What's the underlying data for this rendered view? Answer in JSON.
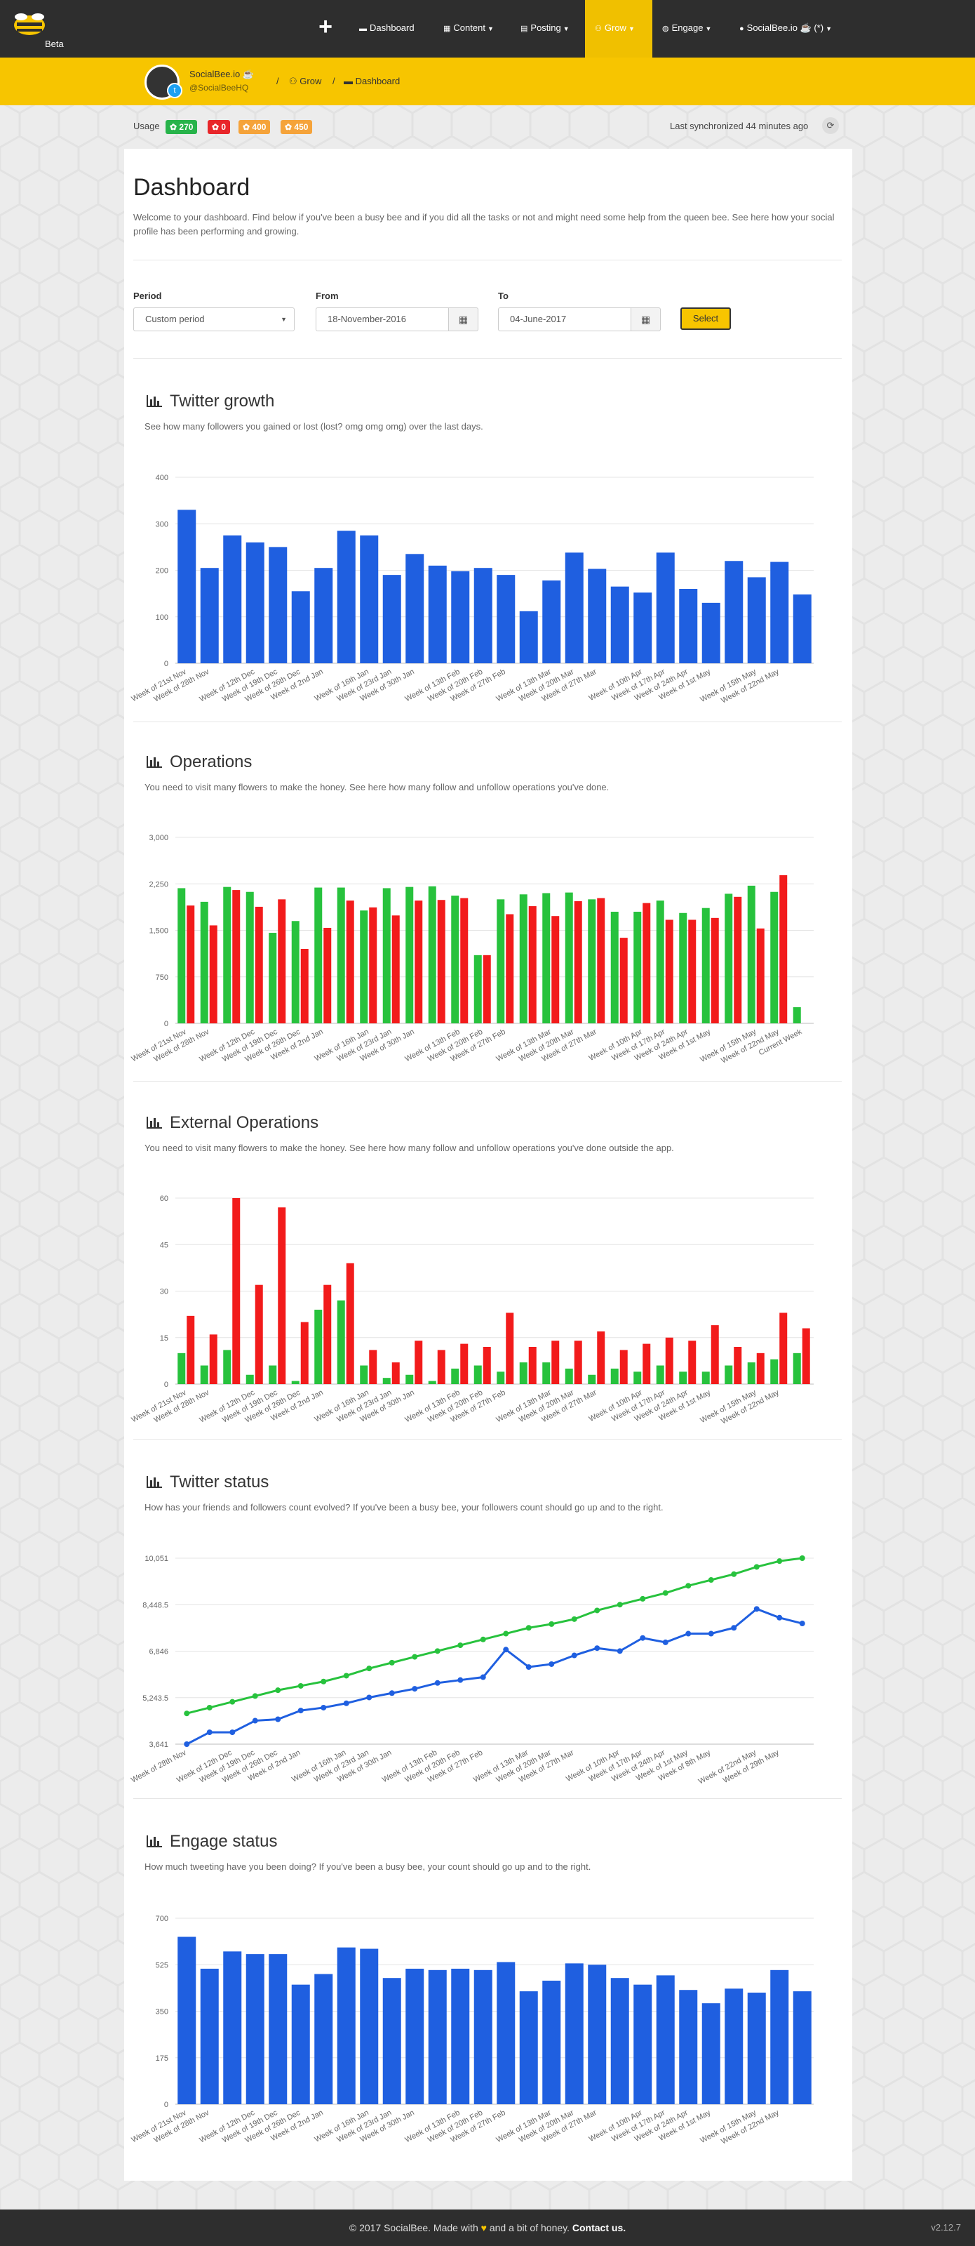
{
  "nav": {
    "logo_label": "Beta",
    "items": [
      {
        "icon": "▬",
        "label": "Dashboard"
      },
      {
        "icon": "▦",
        "label": "Content"
      },
      {
        "icon": "▤",
        "label": "Posting"
      },
      {
        "icon": "⚇",
        "label": "Grow"
      },
      {
        "icon": "◍",
        "label": "Engage"
      },
      {
        "icon": "●",
        "label": "SocialBee.io ☕ (*)"
      }
    ]
  },
  "account": {
    "name": "SocialBee.io ☕",
    "handle": "@SocialBeeHQ"
  },
  "breadcrumb": [
    {
      "icon": "⚇",
      "label": "Grow"
    },
    {
      "icon": "▬",
      "label": "Dashboard"
    }
  ],
  "usage": {
    "label": "Usage",
    "badges": [
      {
        "label": "✿ 270",
        "color": "#27b34a"
      },
      {
        "label": "✿ 0",
        "color": "#e8262a"
      },
      {
        "label": "✿ 400",
        "color": "#f5a33a"
      },
      {
        "label": "✿ 450",
        "color": "#f5a33a"
      }
    ]
  },
  "sync": "Last synchronized 44 minutes ago",
  "page": {
    "title": "Dashboard",
    "description": "Welcome to your dashboard. Find below if you've been a busy bee and if you did all the tasks or not and might need some help from the queen bee. See here how your social profile has been performing and growing."
  },
  "filters": {
    "period_label": "Period",
    "period_value": "Custom period",
    "from_label": "From",
    "from_value": "18-November-2016",
    "to_label": "To",
    "to_value": "04-June-2017",
    "select_label": "Select"
  },
  "charts": [
    {
      "title": "Twitter growth",
      "description": "See how many followers you gained or lost (lost? omg omg omg) over the last days."
    },
    {
      "title": "Operations",
      "description": "You need to visit many flowers to make the honey. See here how many follow and unfollow operations you've done."
    },
    {
      "title": "External Operations",
      "description": "You need to visit many flowers to make the honey. See here how many follow and unfollow operations you've done outside the app."
    },
    {
      "title": "Twitter status",
      "description": "How has your friends and followers count evolved? If you've been a busy bee, your followers count should go up and to the right."
    },
    {
      "title": "Engage status",
      "description": "How much tweeting have you been doing? If you've been a busy bee, your count should go up and to the right."
    }
  ],
  "chart_data": [
    {
      "type": "bar",
      "categories": [
        "Week of 21st Nov",
        "Week of 28th Nov",
        "",
        "Week of 12th Dec",
        "Week of 19th Dec",
        "Week of 26th Dec",
        "Week of 2nd Jan",
        "",
        "Week of 16th Jan",
        "Week of 23rd Jan",
        "Week of 30th Jan",
        "",
        "Week of 13th Feb",
        "Week of 20th Feb",
        "Week of 27th Feb",
        "",
        "Week of 13th Mar",
        "Week of 20th Mar",
        "Week of 27th Mar",
        "",
        "Week of 10th Apr",
        "Week of 17th Apr",
        "Week of 24th Apr",
        "Week of 1st May",
        "",
        "Week of 15th May",
        "Week of 22nd May",
        ""
      ],
      "yticks": [
        "0",
        "100",
        "200",
        "300",
        "400"
      ],
      "ylim": [
        0,
        400
      ],
      "series": [
        {
          "color": "#1f5fe0",
          "values": [
            330,
            205,
            275,
            260,
            250,
            155,
            205,
            285,
            275,
            190,
            235,
            210,
            198,
            205,
            190,
            112,
            178,
            238,
            203,
            165,
            152,
            238,
            160,
            130,
            220,
            185,
            218,
            148
          ]
        }
      ]
    },
    {
      "type": "bar",
      "categories": [
        "Week of 21st Nov",
        "Week of 28th Nov",
        "",
        "Week of 12th Dec",
        "Week of 19th Dec",
        "Week of 26th Dec",
        "Week of 2nd Jan",
        "",
        "Week of 16th Jan",
        "Week of 23rd Jan",
        "Week of 30th Jan",
        "",
        "Week of 13th Feb",
        "Week of 20th Feb",
        "Week of 27th Feb",
        "",
        "Week of 13th Mar",
        "Week of 20th Mar",
        "Week of 27th Mar",
        "",
        "Week of 10th Apr",
        "Week of 17th Apr",
        "Week of 24th Apr",
        "Week of 1st May",
        "",
        "Week of 15th May",
        "Week of 22nd May",
        "Current Week"
      ],
      "yticks": [
        "0",
        "750",
        "1,500",
        "2,250",
        "3,000"
      ],
      "ylim": [
        0,
        3000
      ],
      "series": [
        {
          "color": "#27c23d",
          "values": [
            2180,
            1960,
            2200,
            2120,
            1460,
            1650,
            2190,
            2190,
            1820,
            2180,
            2200,
            2210,
            2060,
            1100,
            2000,
            2080,
            2100,
            2110,
            2000,
            1800,
            1800,
            1980,
            1780,
            1860,
            2090,
            2220,
            2120,
            260
          ]
        },
        {
          "color": "#f21b1b",
          "values": [
            1900,
            1580,
            2150,
            1880,
            2000,
            1200,
            1540,
            1980,
            1870,
            1740,
            1980,
            1990,
            2020,
            1100,
            1760,
            1890,
            1730,
            1970,
            2020,
            1380,
            1940,
            1670,
            1670,
            1700,
            2040,
            1530,
            2390,
            0
          ]
        }
      ]
    },
    {
      "type": "bar",
      "categories": [
        "Week of 21st Nov",
        "Week of 28th Nov",
        "",
        "Week of 12th Dec",
        "Week of 19th Dec",
        "Week of 26th Dec",
        "Week of 2nd Jan",
        "",
        "Week of 16th Jan",
        "Week of 23rd Jan",
        "Week of 30th Jan",
        "",
        "Week of 13th Feb",
        "Week of 20th Feb",
        "Week of 27th Feb",
        "",
        "Week of 13th Mar",
        "Week of 20th Mar",
        "Week of 27th Mar",
        "",
        "Week of 10th Apr",
        "Week of 17th Apr",
        "Week of 24th Apr",
        "Week of 1st May",
        "",
        "Week of 15th May",
        "Week of 22nd May",
        ""
      ],
      "yticks": [
        "0",
        "15",
        "30",
        "45",
        "60"
      ],
      "ylim": [
        0,
        60
      ],
      "series": [
        {
          "color": "#27c23d",
          "values": [
            10,
            6,
            11,
            3,
            6,
            1,
            24,
            27,
            6,
            2,
            3,
            1,
            5,
            6,
            4,
            7,
            7,
            5,
            3,
            5,
            4,
            6,
            4,
            4,
            6,
            7,
            8,
            10
          ]
        },
        {
          "color": "#f21b1b",
          "values": [
            22,
            16,
            60,
            32,
            57,
            20,
            32,
            39,
            11,
            7,
            14,
            11,
            13,
            12,
            23,
            12,
            14,
            14,
            17,
            11,
            13,
            15,
            14,
            19,
            12,
            10,
            23,
            18
          ]
        }
      ]
    },
    {
      "type": "line",
      "categories": [
        "Week of 28th Nov",
        "",
        "Week of 12th Dec",
        "Week of 19th Dec",
        "Week of 26th Dec",
        "Week of 2nd Jan",
        "",
        "Week of 16th Jan",
        "Week of 23rd Jan",
        "Week of 30th Jan",
        "",
        "Week of 13th Feb",
        "Week of 20th Feb",
        "Week of 27th Feb",
        "",
        "Week of 13th Mar",
        "Week of 20th Mar",
        "Week of 27th Mar",
        "",
        "Week of 10th Apr",
        "Week of 17th Apr",
        "Week of 24th Apr",
        "Week of 1st May",
        "Week of 8th May",
        "",
        "Week of 22nd May",
        "Week of 29th May",
        ""
      ],
      "yticks": [
        "3,641",
        "5,243.5",
        "6,846",
        "8,448.5",
        "10,051"
      ],
      "ylim": [
        3641,
        10051
      ],
      "series": [
        {
          "color": "#27c23d",
          "values": [
            4700,
            4900,
            5100,
            5300,
            5500,
            5650,
            5800,
            6000,
            6250,
            6450,
            6650,
            6850,
            7050,
            7250,
            7450,
            7650,
            7780,
            7950,
            8250,
            8450,
            8650,
            8850,
            9100,
            9300,
            9500,
            9750,
            9950,
            10051
          ]
        },
        {
          "color": "#1f5fe0",
          "values": [
            3641,
            4050,
            4050,
            4450,
            4500,
            4800,
            4900,
            5050,
            5250,
            5400,
            5550,
            5750,
            5850,
            5950,
            6900,
            6300,
            6400,
            6700,
            6950,
            6850,
            7300,
            7150,
            7450,
            7450,
            7650,
            8300,
            8000,
            7800
          ]
        }
      ]
    },
    {
      "type": "bar",
      "categories": [
        "Week of 21st Nov",
        "Week of 28th Nov",
        "",
        "Week of 12th Dec",
        "Week of 19th Dec",
        "Week of 26th Dec",
        "Week of 2nd Jan",
        "",
        "Week of 16th Jan",
        "Week of 23rd Jan",
        "Week of 30th Jan",
        "",
        "Week of 13th Feb",
        "Week of 20th Feb",
        "Week of 27th Feb",
        "",
        "Week of 13th Mar",
        "Week of 20th Mar",
        "Week of 27th Mar",
        "",
        "Week of 10th Apr",
        "Week of 17th Apr",
        "Week of 24th Apr",
        "Week of 1st May",
        "",
        "Week of 15th May",
        "Week of 22nd May",
        ""
      ],
      "yticks": [
        "0",
        "175",
        "350",
        "525",
        "700"
      ],
      "ylim": [
        0,
        700
      ],
      "series": [
        {
          "color": "#1f5fe0",
          "values": [
            630,
            510,
            575,
            565,
            565,
            450,
            490,
            590,
            585,
            475,
            510,
            505,
            510,
            505,
            535,
            425,
            465,
            530,
            525,
            475,
            450,
            485,
            430,
            380,
            435,
            420,
            505,
            425
          ]
        }
      ]
    }
  ],
  "footer": {
    "text_left": "© 2017 SocialBee. Made with",
    "heart": "♥",
    "text_mid": "and a bit of honey.",
    "contact": "Contact us.",
    "version": "v2.12.7"
  }
}
